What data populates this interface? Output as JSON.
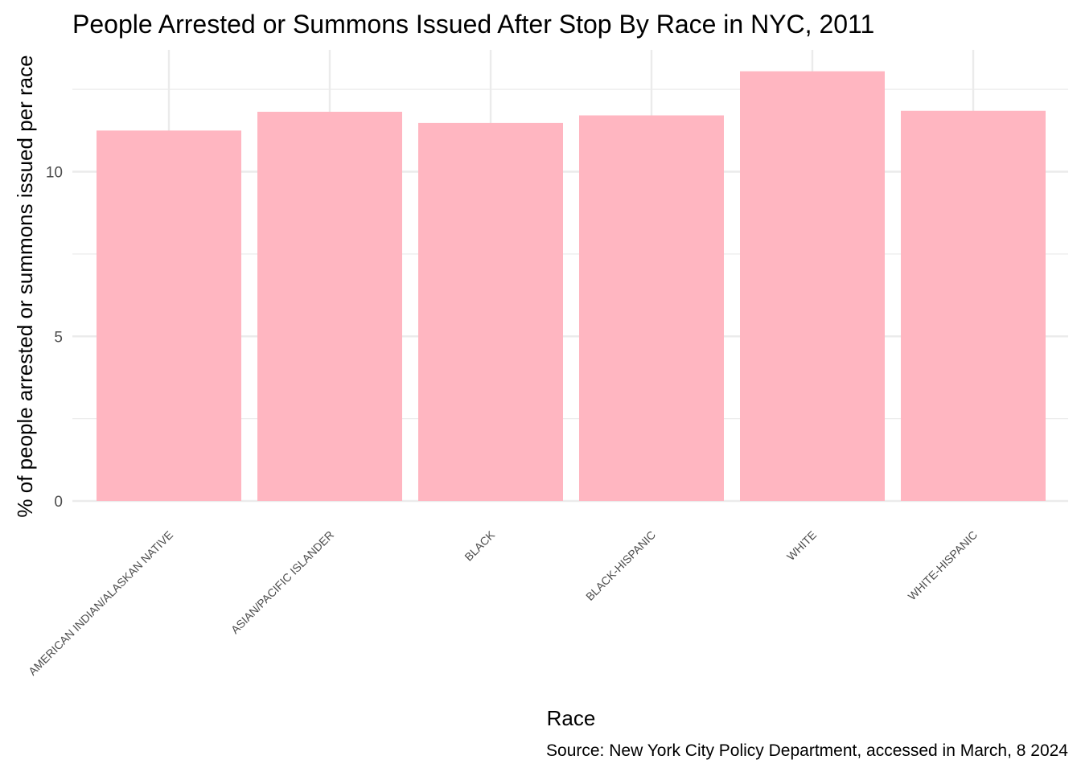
{
  "chart_data": {
    "type": "bar",
    "title": "People Arrested or Summons Issued After Stop By Race in NYC, 2011",
    "xlabel": "Race",
    "ylabel": "% of people arrested or summons issued per race",
    "caption": "Source: New York City Policy Department, accessed in March, 8 2024",
    "categories": [
      "AMERICAN INDIAN/ALASKAN NATIVE",
      "ASIAN/PACIFIC ISLANDER",
      "BLACK",
      "BLACK-HISPANIC",
      "WHITE",
      "WHITE-HISPANIC"
    ],
    "values": [
      11.25,
      11.82,
      11.48,
      11.71,
      13.05,
      11.85
    ],
    "ylim": [
      0,
      13.7
    ],
    "yticks": [
      0,
      5,
      10
    ],
    "ytick_labels": [
      "0",
      "5",
      "10"
    ],
    "grid": true,
    "bar_color": "#ffb6c1",
    "grid_color": "#ebebeb"
  }
}
